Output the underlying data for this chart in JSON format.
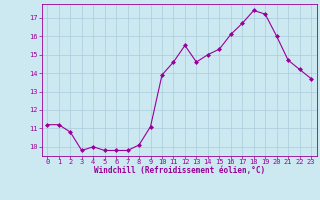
{
  "x": [
    0,
    1,
    2,
    3,
    4,
    5,
    6,
    7,
    8,
    9,
    10,
    11,
    12,
    13,
    14,
    15,
    16,
    17,
    18,
    19,
    20,
    21,
    22,
    23
  ],
  "y": [
    11.2,
    11.2,
    10.8,
    9.8,
    10.0,
    9.8,
    9.8,
    9.8,
    10.1,
    11.1,
    13.9,
    14.6,
    15.5,
    14.6,
    15.0,
    15.3,
    16.1,
    16.7,
    17.4,
    17.2,
    16.0,
    14.7,
    14.2,
    13.7
  ],
  "line_color": "#990099",
  "marker": "D",
  "marker_size": 2.0,
  "bg_color": "#cce8f0",
  "grid_color": "#aaccdd",
  "xlabel": "Windchill (Refroidissement éolien,°C)",
  "ylim": [
    9.5,
    17.75
  ],
  "xlim": [
    -0.5,
    23.5
  ],
  "yticks": [
    10,
    11,
    12,
    13,
    14,
    15,
    16,
    17
  ],
  "xticks": [
    0,
    1,
    2,
    3,
    4,
    5,
    6,
    7,
    8,
    9,
    10,
    11,
    12,
    13,
    14,
    15,
    16,
    17,
    18,
    19,
    20,
    21,
    22,
    23
  ],
  "label_color": "#990099",
  "tick_color": "#990099",
  "axis_color": "#990099",
  "tick_fontsize": 5.0,
  "xlabel_fontsize": 5.5
}
